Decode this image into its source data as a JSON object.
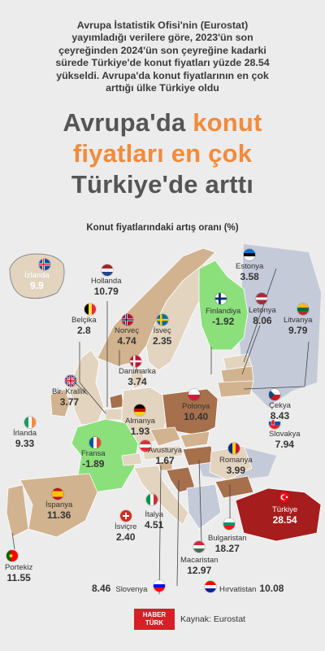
{
  "intro": {
    "line1": "Avrupa İstatistik Ofisi'nin (Eurostat)",
    "line2": "yayımladığı verilere göre, 2023'ün son",
    "line3": "çeyreğinden 2024'ün son çeyreğine kadarki",
    "line4": "sürede Türkiye'de konut fiyatları yüzde 28.54",
    "line5": "yükseldi. Avrupa'da konut fiyatlarının en çok",
    "line6": "arttığı ülke Türkiye oldu"
  },
  "headline": {
    "part1": "Avrupa'da ",
    "part2_accent": "konut",
    "line2_accent": "fiyatları en çok",
    "line3": "Türkiye'de arttı"
  },
  "subtitle": "Konut fiyatlarındaki artış oranı (%)",
  "colors": {
    "background": "#ececec",
    "accent_orange": "#f28b3c",
    "negative_green": "#8ce07c",
    "high_brown": "#a6704c",
    "mid_tan": "#d2b38f",
    "light_beige": "#e3d4c0",
    "turkey_red": "#a51d1d",
    "no_data_blue": "#c5cad9"
  },
  "countries": {
    "izlanda": {
      "name": "İzlanda",
      "value": "9.9"
    },
    "hollanda": {
      "name": "Hollanda",
      "value": "10.79"
    },
    "belcika": {
      "name": "Belçika",
      "value": "2.8"
    },
    "norvec": {
      "name": "Norveç",
      "value": "4.74"
    },
    "isvec": {
      "name": "İsveç",
      "value": "2.35"
    },
    "estonya": {
      "name": "Estonya",
      "value": "3.58"
    },
    "finlandiya": {
      "name": "Finlandiya",
      "value": "-1.92"
    },
    "letonya": {
      "name": "Letonya",
      "value": "8.06"
    },
    "litvanya": {
      "name": "Litvanya",
      "value": "9.79"
    },
    "danimarka": {
      "name": "Danimarka",
      "value": "3.74"
    },
    "birkrallik": {
      "name": "Bir. Krallık",
      "value": "3.77"
    },
    "irlanda": {
      "name": "İrlanda",
      "value": "9.33"
    },
    "almanya": {
      "name": "Almanya",
      "value": "1.93"
    },
    "polonya": {
      "name": "Polonya",
      "value": "10.40"
    },
    "cekya": {
      "name": "Çekya",
      "value": "8.43"
    },
    "slovakya": {
      "name": "Slovakya",
      "value": "7.94"
    },
    "fransa": {
      "name": "Fransa",
      "value": "-1.89"
    },
    "avusturya": {
      "name": "Avusturya",
      "value": "1.67"
    },
    "romanya": {
      "name": "Romanya",
      "value": "3.99"
    },
    "ispanya": {
      "name": "İspanya",
      "value": "11.36"
    },
    "isvicre": {
      "name": "İsviçre",
      "value": "2.40"
    },
    "italya": {
      "name": "İtalya",
      "value": "4.51"
    },
    "turkiye": {
      "name": "Türkiye",
      "value": "28.54"
    },
    "bulgaristan": {
      "name": "Bulgaristan",
      "value": "18.27"
    },
    "portekiz": {
      "name": "Portekiz",
      "value": "11.55"
    },
    "macaristan": {
      "name": "Macaristan",
      "value": "12.97"
    },
    "slovenya": {
      "name": "Slovenya",
      "value": "8.46"
    },
    "hirvatistan": {
      "name": "Hırvatistan",
      "value": "10.08"
    }
  },
  "footer": {
    "logo_line1": "HABER",
    "logo_line2": "TÜRK",
    "source": "Kaynak: Eurostat"
  }
}
